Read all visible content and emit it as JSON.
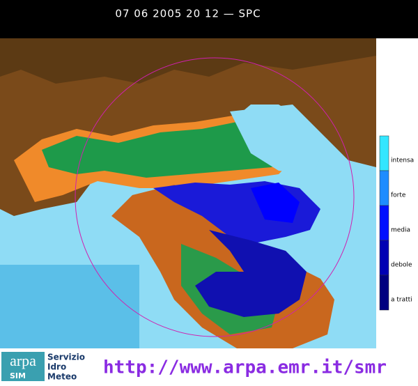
{
  "header": {
    "title": "07 06 2005 20 12 — SPC"
  },
  "legend": {
    "items": [
      {
        "label": "intensa",
        "color": "#33e6ff"
      },
      {
        "label": "forte",
        "color": "#1e8cff"
      },
      {
        "label": "media",
        "color": "#0010ff"
      },
      {
        "label": "debole",
        "color": "#0000b4"
      },
      {
        "label": "a tratti",
        "color": "#000080"
      }
    ]
  },
  "footer": {
    "logo": "arpa",
    "logo_sub": "SIM",
    "org": [
      "Servizio",
      "Idro",
      "Meteo"
    ],
    "url": "http://www.arpa.emr.it/smr"
  }
}
